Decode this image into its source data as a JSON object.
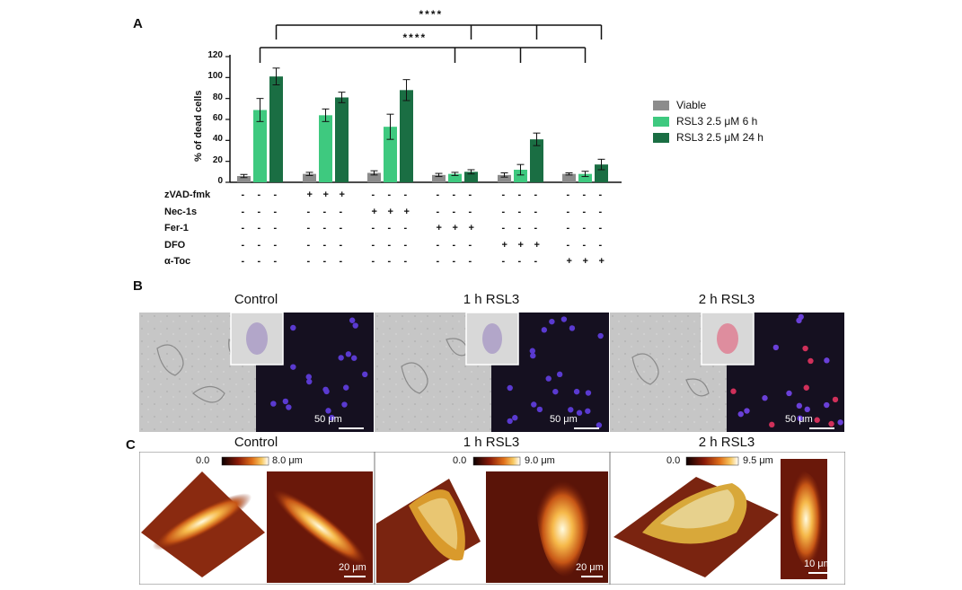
{
  "panels": {
    "a": "A",
    "b": "B",
    "c": "C"
  },
  "chart_data": {
    "type": "bar",
    "ylabel": "% of dead cells",
    "ylim": [
      0,
      120
    ],
    "yticks": [
      0,
      20,
      40,
      60,
      80,
      100,
      120
    ],
    "series": [
      {
        "name": "Viable",
        "color": "#8c8c8c",
        "values": [
          6,
          8,
          9,
          7,
          7,
          8
        ],
        "errors": [
          1.5,
          1.5,
          2,
          1.5,
          2,
          1
        ]
      },
      {
        "name": "RSL3 2.5 μM 6 h",
        "color": "#3ec97f",
        "values": [
          69,
          64,
          53,
          8,
          12,
          8
        ],
        "errors": [
          11,
          6,
          12,
          1.5,
          5,
          2.5
        ]
      },
      {
        "name": "RSL3 2.5 μM 24 h",
        "color": "#1a6e43",
        "values": [
          101,
          81,
          88,
          10,
          41,
          17
        ],
        "errors": [
          8,
          5,
          10,
          2,
          6,
          5
        ]
      }
    ],
    "treatments": [
      {
        "label": "zVAD-fmk",
        "marks": [
          "-",
          "-",
          "-",
          "+",
          "+",
          "+",
          "-",
          "-",
          "-",
          "-",
          "-",
          "-",
          "-",
          "-",
          "-",
          "-",
          "-",
          "-"
        ]
      },
      {
        "label": "Nec-1s",
        "marks": [
          "-",
          "-",
          "-",
          "-",
          "-",
          "-",
          "+",
          "+",
          "+",
          "-",
          "-",
          "-",
          "-",
          "-",
          "-",
          "-",
          "-",
          "-"
        ]
      },
      {
        "label": "Fer-1",
        "marks": [
          "-",
          "-",
          "-",
          "-",
          "-",
          "-",
          "-",
          "-",
          "-",
          "+",
          "+",
          "+",
          "-",
          "-",
          "-",
          "-",
          "-",
          "-"
        ]
      },
      {
        "label": "DFO",
        "marks": [
          "-",
          "-",
          "-",
          "-",
          "-",
          "-",
          "-",
          "-",
          "-",
          "-",
          "-",
          "-",
          "+",
          "+",
          "+",
          "-",
          "-",
          "-"
        ]
      },
      {
        "label": "α-Toc",
        "marks": [
          "-",
          "-",
          "-",
          "-",
          "-",
          "-",
          "-",
          "-",
          "-",
          "-",
          "-",
          "-",
          "-",
          "-",
          "-",
          "+",
          "+",
          "+"
        ]
      }
    ],
    "significance": [
      "****",
      "****"
    ],
    "legend_position": "right"
  },
  "microscopy": {
    "titles": [
      "Control",
      "1 h RSL3",
      "2 h RSL3"
    ],
    "scalebar": "50 μm"
  },
  "afm": {
    "titles": [
      "Control",
      "1 h RSL3",
      "2 h RSL3"
    ],
    "colorbars": [
      {
        "min": "0.0",
        "max": "8.0 μm"
      },
      {
        "min": "0.0",
        "max": "9.0 μm"
      },
      {
        "min": "0.0",
        "max": "9.5 μm"
      }
    ],
    "scalebars": [
      "20 μm",
      "20 μm",
      "10 μm"
    ]
  }
}
